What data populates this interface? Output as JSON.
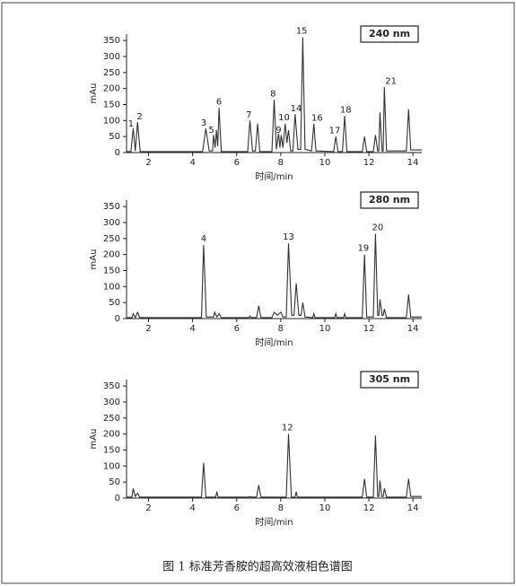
{
  "caption": "图 1 标准芳香胺的超高效液相色谱图",
  "chart_data": [
    {
      "type": "line",
      "title": "240 nm",
      "x_label": "时间/min",
      "y_label": "mAu",
      "x": [
        1.0,
        1.2,
        1.3,
        1.4,
        1.5,
        1.62,
        4.45,
        4.6,
        4.75,
        4.9,
        4.95,
        5.02,
        5.08,
        5.14,
        5.2,
        5.3,
        6.5,
        6.6,
        6.72,
        6.85,
        6.95,
        7.05,
        7.6,
        7.7,
        7.8,
        7.9,
        7.96,
        8.02,
        8.1,
        8.2,
        8.28,
        8.35,
        8.45,
        8.55,
        8.65,
        8.78,
        8.9,
        9.0,
        9.1,
        9.4,
        9.5,
        9.6,
        10.4,
        10.5,
        10.6,
        10.8,
        10.9,
        11.0,
        11.7,
        11.8,
        11.9,
        12.2,
        12.3,
        12.4,
        12.45,
        12.5,
        12.6,
        12.65,
        12.7,
        12.8,
        13.7,
        13.8,
        13.9,
        14.4
      ],
      "series": [
        {
          "color": "#333333",
          "values": [
            3,
            3,
            75,
            5,
            95,
            3,
            3,
            75,
            5,
            5,
            55,
            15,
            70,
            20,
            140,
            3,
            3,
            100,
            5,
            5,
            90,
            3,
            3,
            165,
            10,
            60,
            15,
            55,
            15,
            90,
            30,
            70,
            5,
            5,
            120,
            10,
            10,
            360,
            10,
            5,
            90,
            5,
            3,
            50,
            3,
            3,
            115,
            3,
            3,
            50,
            3,
            3,
            55,
            5,
            5,
            125,
            5,
            5,
            205,
            5,
            5,
            135,
            8,
            8
          ]
        }
      ],
      "xlim": [
        1.0,
        14.4
      ],
      "ylim": [
        0,
        370
      ],
      "xticks": [
        2,
        4,
        6,
        8,
        10,
        12,
        14
      ],
      "yticks": [
        0,
        50,
        100,
        150,
        200,
        250,
        300,
        350
      ],
      "peak_labels": [
        {
          "label": "1",
          "x": 1.2,
          "y": 90
        },
        {
          "label": "2",
          "x": 1.6,
          "y": 112
        },
        {
          "label": "3",
          "x": 4.5,
          "y": 93
        },
        {
          "label": "5",
          "x": 4.85,
          "y": 70
        },
        {
          "label": "6",
          "x": 5.2,
          "y": 158
        },
        {
          "label": "7",
          "x": 6.55,
          "y": 118
        },
        {
          "label": "8",
          "x": 7.65,
          "y": 183
        },
        {
          "label": "9",
          "x": 7.9,
          "y": 70
        },
        {
          "label": "10",
          "x": 8.15,
          "y": 110
        },
        {
          "label": "14",
          "x": 8.7,
          "y": 138
        },
        {
          "label": "15",
          "x": 8.95,
          "y": 380
        },
        {
          "label": "16",
          "x": 9.65,
          "y": 108
        },
        {
          "label": "17",
          "x": 10.45,
          "y": 68
        },
        {
          "label": "18",
          "x": 10.95,
          "y": 133
        },
        {
          "label": "21",
          "x": 13.0,
          "y": 223
        }
      ]
    },
    {
      "type": "line",
      "title": "280 nm",
      "x_label": "时间/min",
      "y_label": "mAu",
      "x": [
        1.0,
        1.25,
        1.3,
        1.4,
        1.5,
        1.6,
        4.4,
        4.5,
        4.62,
        4.95,
        5.0,
        5.1,
        5.2,
        5.3,
        6.55,
        6.6,
        6.65,
        6.9,
        7.0,
        7.1,
        7.6,
        7.7,
        7.85,
        8.0,
        8.1,
        8.25,
        8.35,
        8.5,
        8.6,
        8.7,
        8.82,
        8.92,
        9.0,
        9.1,
        9.45,
        9.5,
        9.55,
        10.45,
        10.5,
        10.55,
        10.85,
        10.9,
        10.95,
        11.7,
        11.8,
        11.9,
        12.2,
        12.3,
        12.4,
        12.45,
        12.5,
        12.6,
        12.65,
        12.7,
        12.8,
        13.7,
        13.8,
        13.9,
        14.4
      ],
      "series": [
        {
          "color": "#333333",
          "values": [
            3,
            3,
            15,
            3,
            20,
            3,
            3,
            230,
            5,
            5,
            20,
            5,
            15,
            3,
            3,
            8,
            3,
            3,
            40,
            3,
            3,
            20,
            10,
            20,
            5,
            5,
            235,
            10,
            10,
            110,
            10,
            10,
            50,
            5,
            3,
            15,
            3,
            3,
            15,
            3,
            3,
            15,
            3,
            3,
            200,
            5,
            5,
            265,
            10,
            10,
            60,
            10,
            10,
            30,
            3,
            3,
            75,
            5,
            5
          ]
        }
      ],
      "xlim": [
        1.0,
        14.4
      ],
      "ylim": [
        0,
        370
      ],
      "xticks": [
        2,
        4,
        6,
        8,
        10,
        12,
        14
      ],
      "yticks": [
        0,
        50,
        100,
        150,
        200,
        250,
        300,
        350
      ],
      "peak_labels": [
        {
          "label": "4",
          "x": 4.5,
          "y": 250
        },
        {
          "label": "13",
          "x": 8.35,
          "y": 255
        },
        {
          "label": "19",
          "x": 11.75,
          "y": 220
        },
        {
          "label": "20",
          "x": 12.4,
          "y": 285
        }
      ]
    },
    {
      "type": "line",
      "title": "305 nm",
      "x_label": "时间/min",
      "y_label": "mAu",
      "x": [
        1.0,
        1.25,
        1.3,
        1.4,
        1.5,
        1.6,
        4.4,
        4.5,
        4.6,
        5.05,
        5.1,
        5.15,
        6.55,
        6.6,
        6.65,
        6.9,
        7.0,
        7.1,
        8.25,
        8.35,
        8.48,
        8.65,
        8.7,
        8.75,
        11.7,
        11.8,
        11.9,
        12.2,
        12.3,
        12.4,
        12.45,
        12.5,
        12.58,
        12.65,
        12.7,
        12.8,
        13.7,
        13.8,
        13.9,
        14.4
      ],
      "series": [
        {
          "color": "#333333",
          "values": [
            3,
            3,
            30,
            5,
            15,
            3,
            3,
            110,
            3,
            3,
            20,
            3,
            3,
            5,
            3,
            3,
            40,
            3,
            3,
            200,
            3,
            3,
            20,
            3,
            3,
            60,
            3,
            3,
            195,
            5,
            5,
            55,
            5,
            5,
            30,
            3,
            3,
            60,
            5,
            5
          ]
        }
      ],
      "xlim": [
        1.0,
        14.4
      ],
      "ylim": [
        0,
        370
      ],
      "xticks": [
        2,
        4,
        6,
        8,
        10,
        12,
        14
      ],
      "yticks": [
        0,
        50,
        100,
        150,
        200,
        250,
        300,
        350
      ],
      "peak_labels": [
        {
          "label": "12",
          "x": 8.3,
          "y": 220
        }
      ]
    }
  ]
}
